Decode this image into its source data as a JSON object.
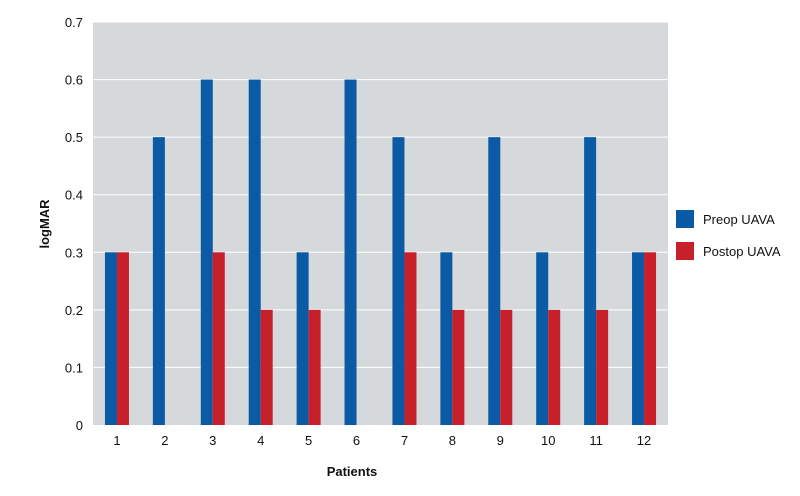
{
  "chart_data": {
    "type": "bar",
    "xlabel": "Patients",
    "ylabel": "logMAR",
    "ylim": [
      0,
      0.7
    ],
    "yticks": [
      "0",
      "0.1",
      "0.2",
      "0.3",
      "0.4",
      "0.5",
      "0.6",
      "0.7"
    ],
    "categories": [
      "1",
      "2",
      "3",
      "4",
      "5",
      "6",
      "7",
      "8",
      "9",
      "10",
      "11",
      "12"
    ],
    "series": [
      {
        "name": "Preop UAVA",
        "color": "#0a5aa5",
        "values": [
          0.3,
          0.5,
          0.6,
          0.6,
          0.3,
          0.6,
          0.5,
          0.3,
          0.5,
          0.3,
          0.5,
          0.3
        ]
      },
      {
        "name": "Postop UAVA",
        "color": "#c8202b",
        "values": [
          0.3,
          0.0,
          0.3,
          0.2,
          0.2,
          0.0,
          0.3,
          0.2,
          0.2,
          0.2,
          0.2,
          0.3
        ]
      }
    ],
    "grid": true,
    "plot_background": "#d5d9dc",
    "legend_position": "right"
  }
}
